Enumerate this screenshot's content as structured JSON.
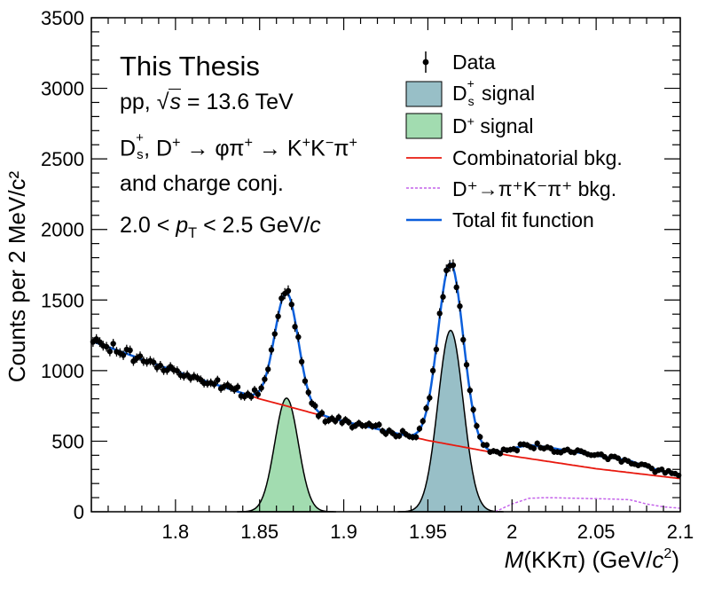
{
  "chart_data": {
    "type": "scatter",
    "title": "",
    "xlabel": {
      "pre": "M",
      "mid": "(KKπ) (GeV/",
      "var": "c",
      "sup": "2",
      "post": ")"
    },
    "ylabel": "Counts per 2 MeV/c²",
    "xlim": [
      1.75,
      2.1
    ],
    "ylim": [
      0,
      3500
    ],
    "xticks": [
      "1.8",
      "1.85",
      "1.9",
      "1.95",
      "2",
      "2.05",
      "2.1"
    ],
    "yticks": [
      "0",
      "500",
      "1000",
      "1500",
      "2000",
      "2500",
      "3000",
      "3500"
    ],
    "grid": false,
    "annotations": {
      "label": "This Thesis",
      "system_pre": "pp,",
      "system_sqrt": "s",
      "system_post": " = 13.6 TeV",
      "decay_line1": "D_s^+, D^+ → φπ^+ → K^+K^−π^+",
      "decay_line2": "and charge conj.",
      "pt_lo": "2.0 <",
      "pt_var": "p",
      "pt_sub": "T",
      "pt_hi": "< 2.5 GeV/",
      "pt_c": "c"
    },
    "legend": {
      "placement": "top-right",
      "data": "Data",
      "ds_signal": {
        "pre": "D",
        "sup": "+",
        "sub": "s",
        "post": " signal"
      },
      "dplus_signal": {
        "pre": "D",
        "sup": "+",
        "post": " signal"
      },
      "combinatorial": "Combinatorial bkg.",
      "reflection": "D⁺→π⁺K⁻π⁺ bkg.",
      "total": "Total fit function"
    },
    "model": {
      "background": {
        "x": [
          1.75,
          1.8,
          1.85,
          1.9,
          1.95,
          2.0,
          2.05,
          2.1
        ],
        "y": [
          1210,
          995,
          800,
          640,
          505,
          395,
          305,
          235
        ]
      },
      "ds_peak": {
        "mean": 1.9635,
        "sigma": 0.0075,
        "amplitude": 1285
      },
      "dplus_peak": {
        "mean": 1.866,
        "sigma": 0.007,
        "amplitude": 805
      },
      "reflection": {
        "start": 1.99,
        "x": [
          1.99,
          2.0,
          2.01,
          2.02,
          2.04,
          2.06,
          2.07,
          2.08,
          2.09,
          2.1
        ],
        "y": [
          0,
          55,
          95,
          100,
          95,
          90,
          85,
          55,
          35,
          25
        ]
      }
    },
    "series": [
      {
        "name": "Data",
        "type": "scatter",
        "error_bars": true
      },
      {
        "name": "Ds+ signal",
        "type": "area",
        "color": "#98bfc7"
      },
      {
        "name": "D+ signal",
        "type": "area",
        "color": "#a2dcb0"
      },
      {
        "name": "Combinatorial bkg.",
        "type": "line",
        "color": "#e8190f"
      },
      {
        "name": "D+→π+K−π+ bkg.",
        "type": "line",
        "color": "#c462ea",
        "dashed": true
      },
      {
        "name": "Total fit function",
        "type": "line",
        "color": "#0b5fdc"
      }
    ],
    "colors": {
      "ds_fill": "#98bfc7",
      "dplus_fill": "#a2dcb0",
      "combinatorial": "#e8190f",
      "reflection": "#c462ea",
      "total": "#0b5fdc",
      "data": "#000000"
    }
  }
}
